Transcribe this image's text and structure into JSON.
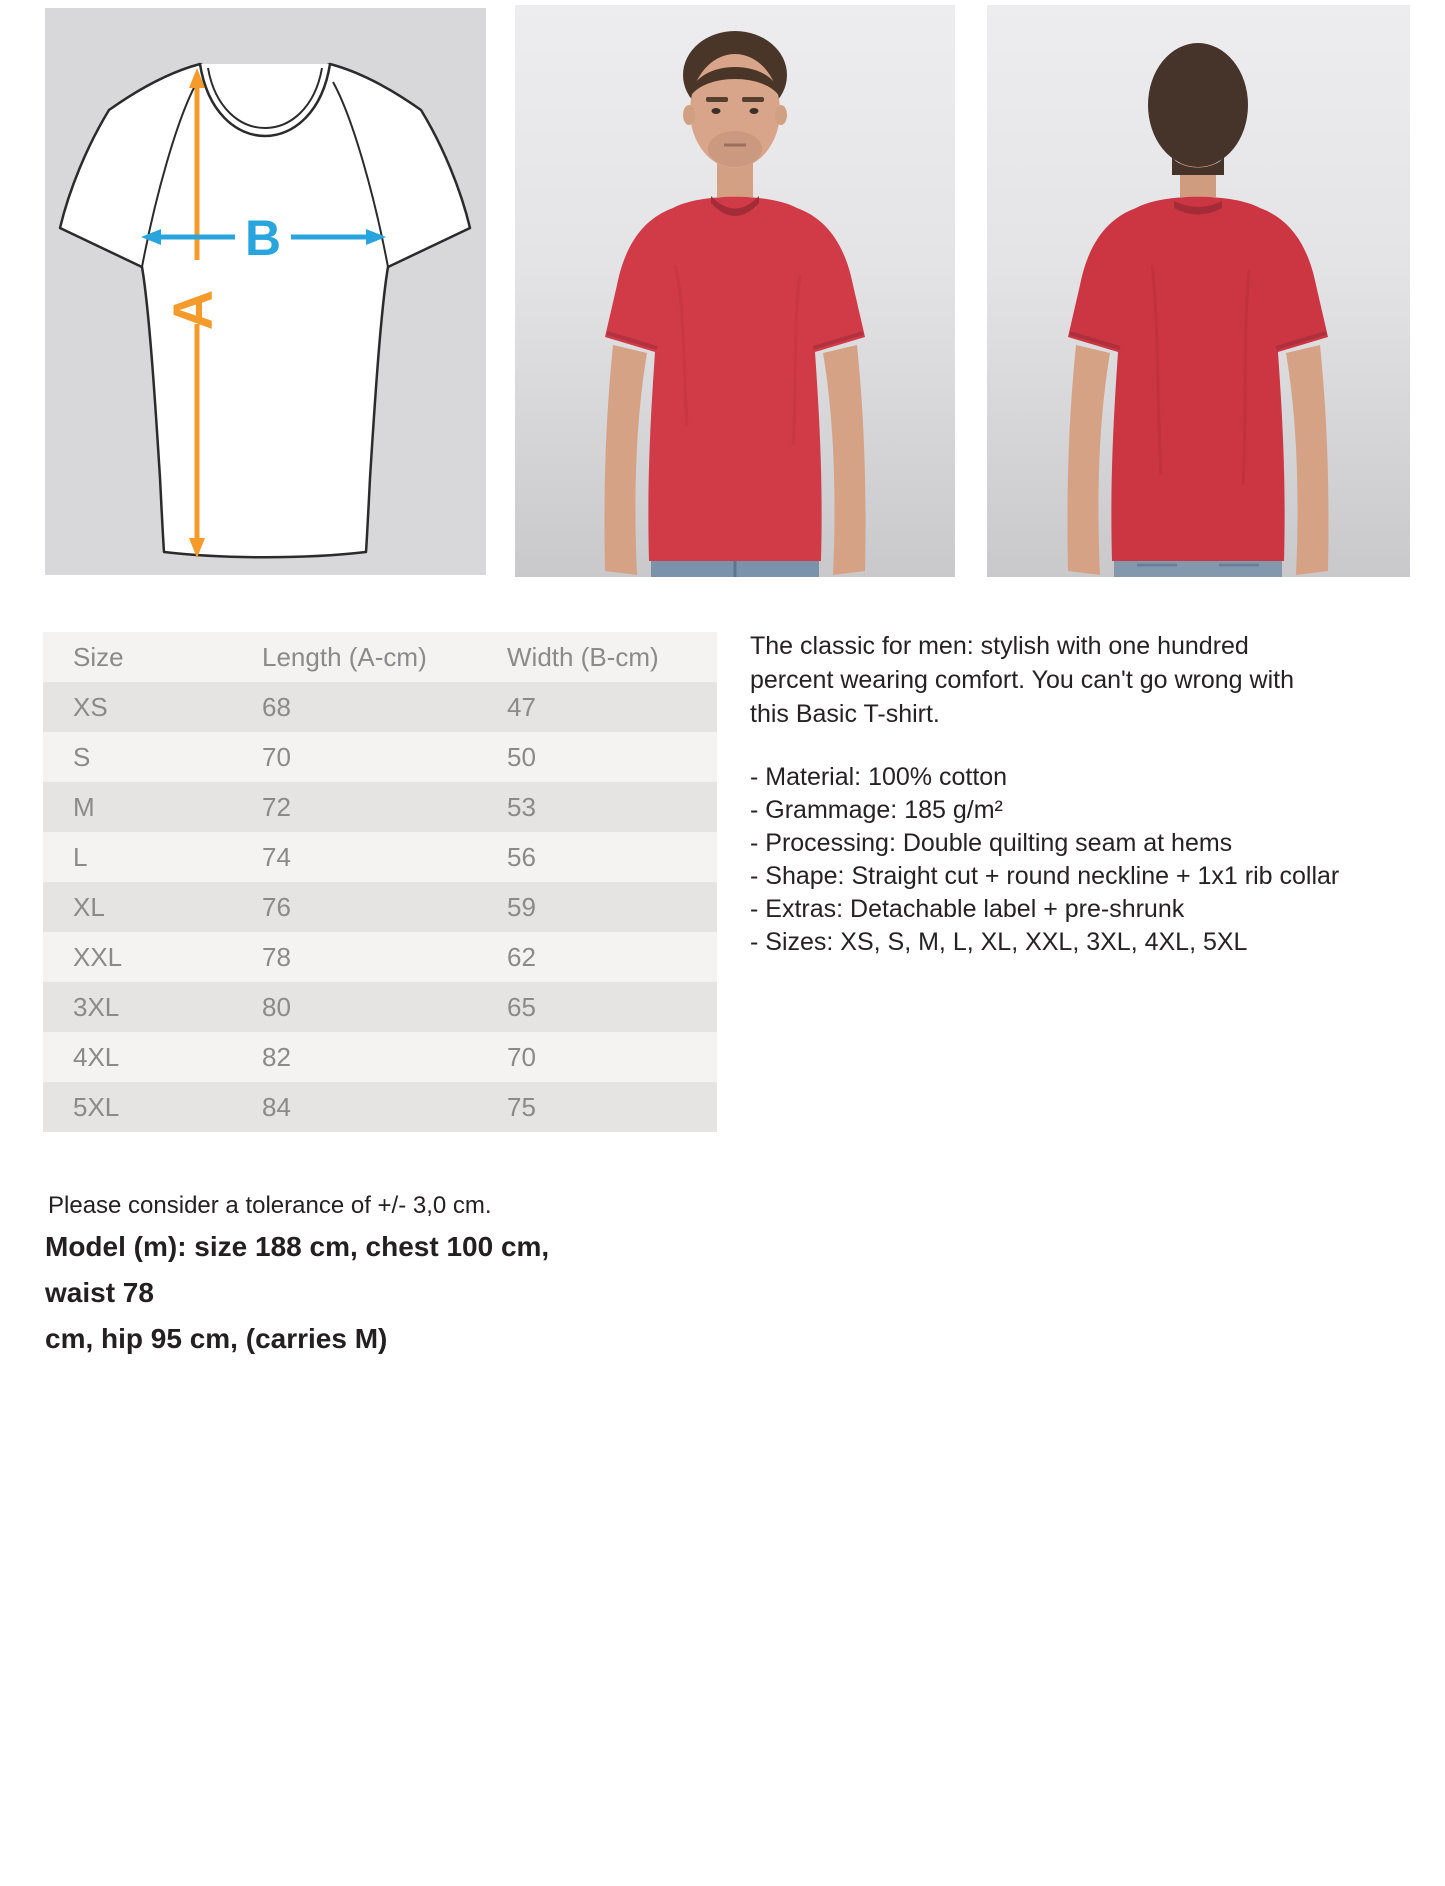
{
  "diagram": {
    "label_a": "A",
    "label_b": "B",
    "arrow_a_color": "#F49B2B",
    "arrow_b_color": "#29A5DD",
    "panel_bg": "#D8D8DA"
  },
  "photos": {
    "front": "man wearing red t-shirt, front view",
    "back": "man wearing red t-shirt, back view",
    "shirt_color": "#D13A47"
  },
  "size_table": {
    "headers": [
      "Size",
      "Length (A-cm)",
      "Width (B-cm)"
    ],
    "rows": [
      {
        "size": "XS",
        "length": "68",
        "width": "47"
      },
      {
        "size": "S",
        "length": "70",
        "width": "50"
      },
      {
        "size": "M",
        "length": "72",
        "width": "53"
      },
      {
        "size": "L",
        "length": "74",
        "width": "56"
      },
      {
        "size": "XL",
        "length": "76",
        "width": "59"
      },
      {
        "size": "XXL",
        "length": "78",
        "width": "62"
      },
      {
        "size": "3XL",
        "length": "80",
        "width": "65"
      },
      {
        "size": "4XL",
        "length": "82",
        "width": "70"
      },
      {
        "size": "5XL",
        "length": "84",
        "width": "75"
      }
    ]
  },
  "description": {
    "intro": "The classic for men: stylish with one hundred\npercent wearing comfort. You can't go wrong with\nthis Basic T-shirt.",
    "bullets": [
      "- Material: 100% cotton",
      "- Grammage: 185 g/m²",
      "- Processing: Double quilting seam at hems",
      "- Shape: Straight cut + round neckline + 1x1 rib collar",
      "- Extras: Detachable label + pre-shrunk",
      "- Sizes: XS, S, M, L, XL, XXL, 3XL, 4XL, 5XL"
    ]
  },
  "notes": {
    "tolerance": "Please consider a tolerance of +/- 3,0 cm.",
    "model": "Model (m): size 188 cm, chest 100 cm, waist 78\ncm, hip 95 cm, (carries M)"
  }
}
